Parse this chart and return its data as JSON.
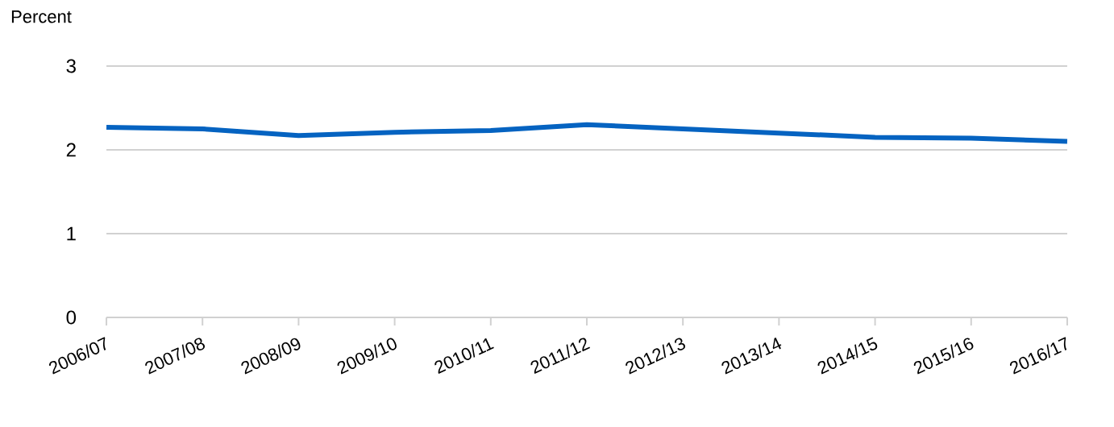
{
  "chart_data": {
    "type": "line",
    "ylabel": "Percent",
    "categories": [
      "2006/07",
      "2007/08",
      "2008/09",
      "2009/10",
      "2010/11",
      "2011/12",
      "2012/13",
      "2013/14",
      "2014/15",
      "2015/16",
      "2016/17"
    ],
    "series": [
      {
        "color": "#0563c1",
        "values": [
          2.27,
          2.25,
          2.17,
          2.21,
          2.23,
          2.3,
          2.25,
          2.2,
          2.15,
          2.14,
          2.1
        ]
      }
    ],
    "ylim": [
      0,
      3
    ],
    "yticks": [
      0,
      1,
      2,
      3
    ],
    "grid": "y",
    "marker": "none",
    "line_style": "solid"
  }
}
